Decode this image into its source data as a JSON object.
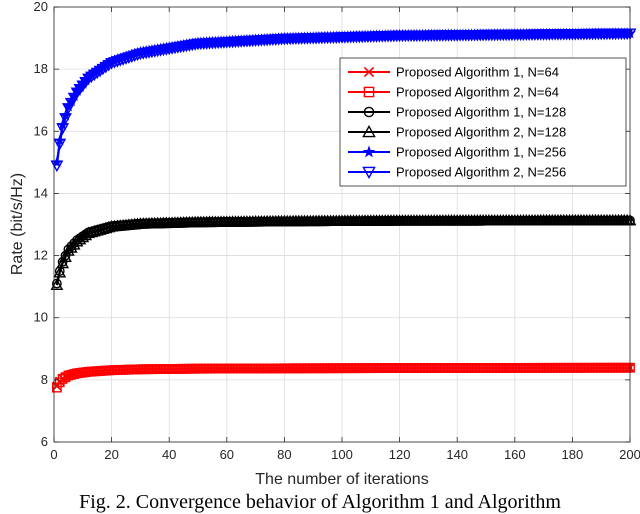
{
  "caption": "Fig. 2. Convergence behavior of Algorithm 1 and Algorithm",
  "chart_data": {
    "type": "line",
    "xlabel": "The number of iterations",
    "ylabel": "Rate (bit/s/Hz)",
    "xlim": [
      0,
      200
    ],
    "ylim": [
      6,
      20
    ],
    "xticks": [
      "0",
      "20",
      "40",
      "60",
      "80",
      "100",
      "120",
      "140",
      "160",
      "180",
      "200"
    ],
    "yticks": [
      "6",
      "8",
      "10",
      "12",
      "14",
      "16",
      "18",
      "20"
    ],
    "grid": true,
    "legend_position": "top-right",
    "series": [
      {
        "name": "Proposed Algorithm 1, N=64",
        "color": "#ff0000",
        "marker": "x",
        "x": [
          1,
          2,
          3,
          5,
          8,
          12,
          20,
          30,
          50,
          80,
          120,
          200
        ],
        "y": [
          7.8,
          7.95,
          8.05,
          8.15,
          8.22,
          8.27,
          8.32,
          8.35,
          8.37,
          8.38,
          8.39,
          8.39
        ]
      },
      {
        "name": "Proposed Algorithm 2, N=64",
        "color": "#ff0000",
        "marker": "square",
        "x": [
          1,
          2,
          3,
          5,
          8,
          12,
          20,
          30,
          50,
          80,
          120,
          200
        ],
        "y": [
          7.75,
          7.92,
          8.03,
          8.14,
          8.21,
          8.26,
          8.31,
          8.34,
          8.36,
          8.37,
          8.38,
          8.39
        ]
      },
      {
        "name": "Proposed Algorithm 1, N=128",
        "color": "#000000",
        "marker": "circle",
        "x": [
          1,
          2,
          3,
          5,
          8,
          12,
          20,
          30,
          50,
          80,
          120,
          200
        ],
        "y": [
          11.1,
          11.5,
          11.8,
          12.2,
          12.5,
          12.75,
          12.95,
          13.03,
          13.08,
          13.1,
          13.12,
          13.13
        ]
      },
      {
        "name": "Proposed Algorithm 2, N=128",
        "color": "#000000",
        "marker": "triangle-up",
        "x": [
          1,
          2,
          3,
          5,
          8,
          12,
          20,
          30,
          50,
          80,
          120,
          200
        ],
        "y": [
          11.05,
          11.45,
          11.75,
          12.15,
          12.45,
          12.72,
          12.93,
          13.02,
          13.07,
          13.1,
          13.12,
          13.13
        ]
      },
      {
        "name": "Proposed Algorithm 1, N=256",
        "color": "#0000ff",
        "marker": "star",
        "x": [
          1,
          2,
          3,
          5,
          8,
          12,
          20,
          30,
          50,
          80,
          120,
          200
        ],
        "y": [
          15.0,
          15.7,
          16.2,
          16.8,
          17.3,
          17.75,
          18.25,
          18.55,
          18.85,
          19.0,
          19.1,
          19.15
        ]
      },
      {
        "name": "Proposed Algorithm 2, N=256",
        "color": "#0000ff",
        "marker": "triangle-down",
        "x": [
          1,
          2,
          3,
          5,
          8,
          12,
          20,
          30,
          50,
          80,
          120,
          200
        ],
        "y": [
          14.9,
          15.6,
          16.1,
          16.75,
          17.25,
          17.7,
          18.2,
          18.5,
          18.82,
          18.98,
          19.08,
          19.15
        ]
      }
    ]
  }
}
